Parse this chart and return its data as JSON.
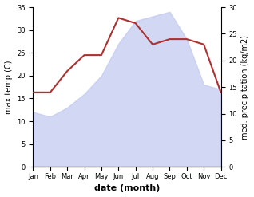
{
  "months": [
    "Jan",
    "Feb",
    "Mar",
    "Apr",
    "May",
    "Jun",
    "Jul",
    "Aug",
    "Sep",
    "Oct",
    "Nov",
    "Dec"
  ],
  "max_temp": [
    12,
    11,
    13,
    16,
    20,
    27,
    32,
    33,
    34,
    28,
    18,
    17
  ],
  "med_precip": [
    14,
    14,
    18,
    21,
    21,
    28,
    27,
    23,
    24,
    24,
    23,
    14
  ],
  "fill_color": "#c0c8f0",
  "fill_alpha": 0.7,
  "precip_color": "#b03030",
  "left_ylim": [
    0,
    35
  ],
  "right_ylim": [
    0,
    30
  ],
  "left_ylabel": "max temp (C)",
  "right_ylabel": "med. precipitation (kg/m2)",
  "xlabel": "date (month)",
  "left_yticks": [
    0,
    5,
    10,
    15,
    20,
    25,
    30,
    35
  ],
  "right_yticks": [
    0,
    5,
    10,
    15,
    20,
    25,
    30
  ],
  "label_fontsize": 7,
  "tick_fontsize": 6,
  "xlabel_fontsize": 8
}
